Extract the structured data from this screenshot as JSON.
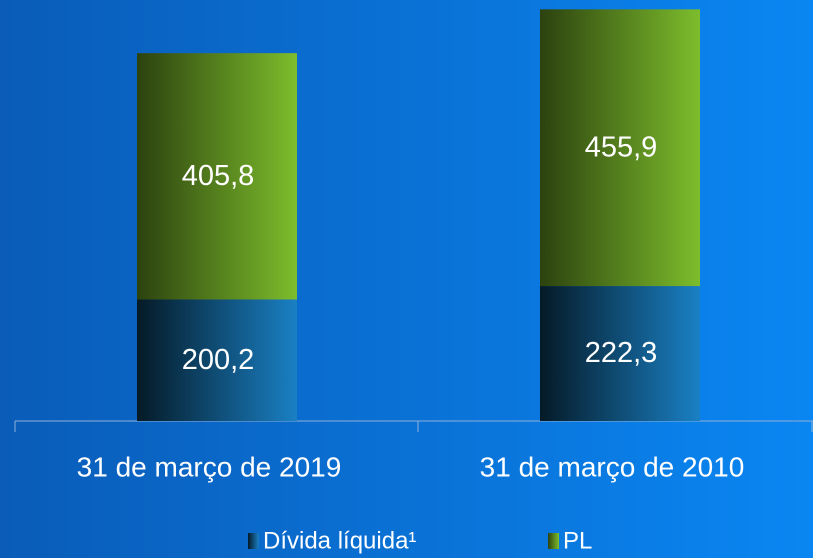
{
  "chart_data": {
    "type": "stacked_bar",
    "categories": [
      "31 de março de 2019",
      "31 de março de 2010"
    ],
    "series": [
      {
        "name": "Dívida líquida¹",
        "color": "#1a80c4",
        "values": [
          200.2,
          222.3
        ],
        "value_labels": [
          "200,2",
          "222,3"
        ]
      },
      {
        "name": "PL",
        "color": "#7dbd2c",
        "values": [
          405.8,
          455.9
        ],
        "value_labels": [
          "405,8",
          "455,9"
        ]
      }
    ]
  }
}
